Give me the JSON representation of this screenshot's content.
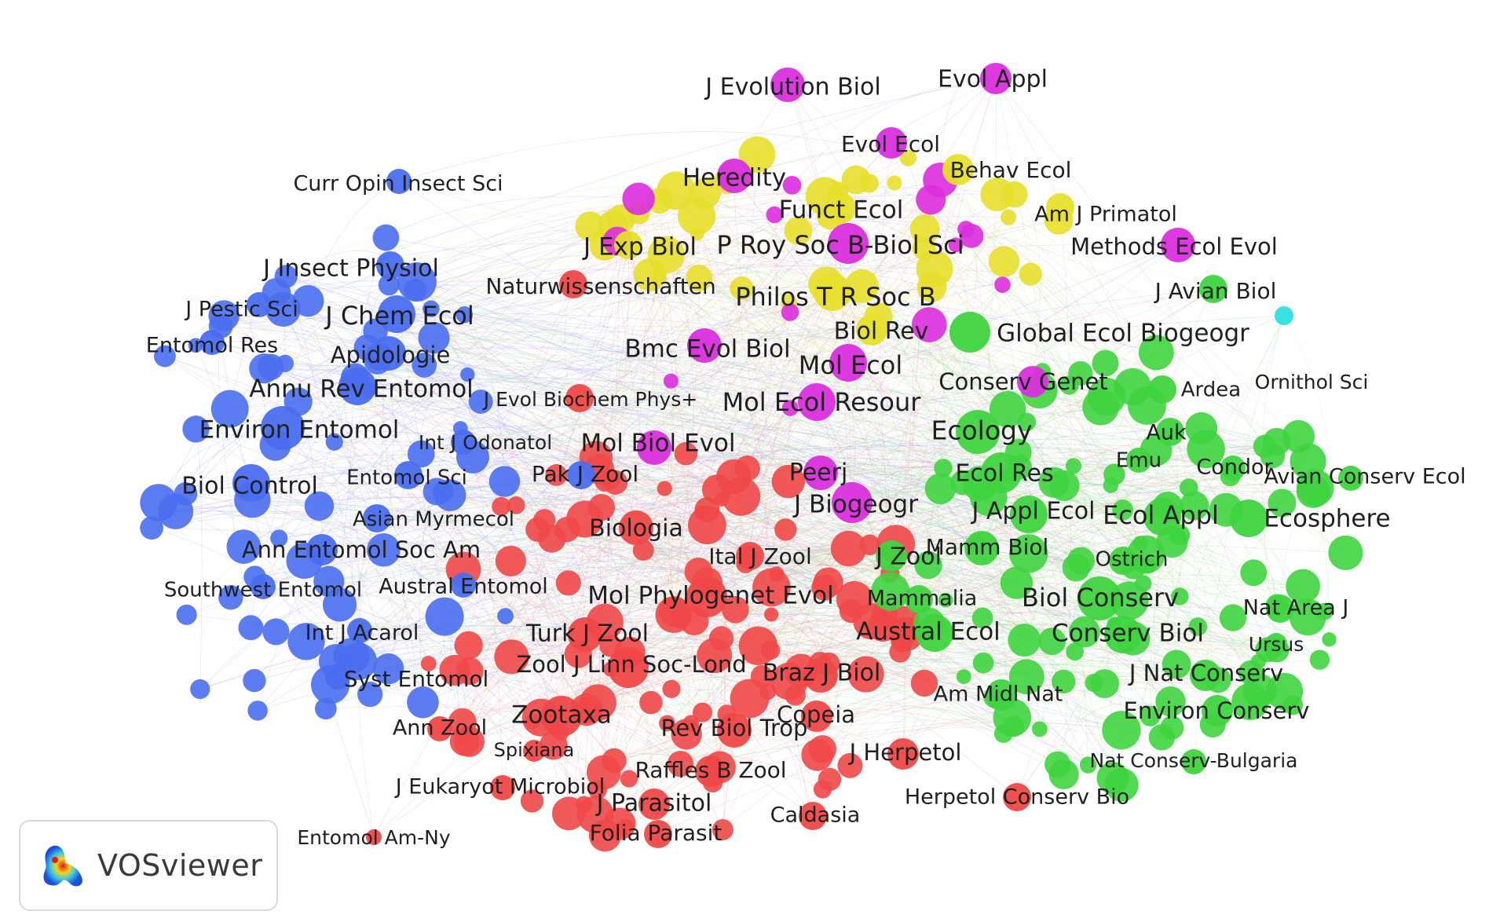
{
  "app": {
    "name": "VOSviewer",
    "logo_icon": "vosviewer-heat-icon"
  },
  "clusters": {
    "blue": {
      "color": "#4a6ef0",
      "edge": "#8ea3f5"
    },
    "red": {
      "color": "#ef4848",
      "edge": "#f29b9b"
    },
    "green": {
      "color": "#3fd43f",
      "edge": "#8de08d"
    },
    "yellow": {
      "color": "#e7df2c",
      "edge": "#ece68a"
    },
    "purple": {
      "color": "#db2ede",
      "edge": "#e58de6"
    },
    "cyan": {
      "color": "#2ee0e0",
      "edge": "#8de8e8"
    }
  },
  "journals": [
    "J Evolution Biol",
    "Evol Appl",
    "Evol Ecol",
    "Heredity",
    "Behav Ecol",
    "Funct Ecol",
    "Am J Primatol",
    "J Exp Biol",
    "P Roy Soc B-Biol Sci",
    "Methods Ecol Evol",
    "Naturwissenschaften",
    "Philos T R Soc B",
    "J Avian Biol",
    "Curr Opin Insect Sci",
    "J Insect Physiol",
    "J Pestic Sci",
    "J Chem Ecol",
    "Entomol Res",
    "Apidologie",
    "Annu Rev Entomol",
    "J Evol Biochem Phys+",
    "Environ Entomol",
    "Int J Odonatol",
    "Biol Control",
    "Entomol Sci",
    "Asian Myrmecol",
    "Ann Entomol Soc Am",
    "Southwest Entomol",
    "Austral Entomol",
    "Int J Acarol",
    "Syst Entomol",
    "Bmc Evol Biol",
    "Biol Rev",
    "Global Ecol Biogeogr",
    "Mol Ecol",
    "Conserv Genet",
    "Ardea",
    "Ornithol Sci",
    "Mol Ecol Resour",
    "Ecology",
    "Mol Biol Evol",
    "Auk",
    "Emu",
    "Condor",
    "Avian Conserv Ecol",
    "Peerj",
    "Ecol Res",
    "Pak J Zool",
    "J Biogeogr",
    "J Appl Ecol",
    "Ecol Appl",
    "Ecosphere",
    "Biologia",
    "Ital J Zool",
    "J Zool",
    "Mamm Biol",
    "Ostrich",
    "Mol Phylogenet Evol",
    "Mammalia",
    "Biol Conserv",
    "Nat Area J",
    "Turk J Zool",
    "Austral Ecol",
    "Conserv Biol",
    "Ursus",
    "Zool J Linn Soc-Lond",
    "Braz J Biol",
    "J Nat Conserv",
    "Am Midl Nat",
    "Zootaxa",
    "Copeia",
    "Environ Conserv",
    "Ann Zool",
    "Rev Biol Trop",
    "Spixiana",
    "J Herpetol",
    "Raffles B Zool",
    "Nat Conserv-Bulgaria",
    "J Eukaryot Microbiol",
    "J Parasitol",
    "Herpetol Conserv Bio",
    "Caldasia",
    "Folia Parasit",
    "Entomol Am-Ny"
  ]
}
